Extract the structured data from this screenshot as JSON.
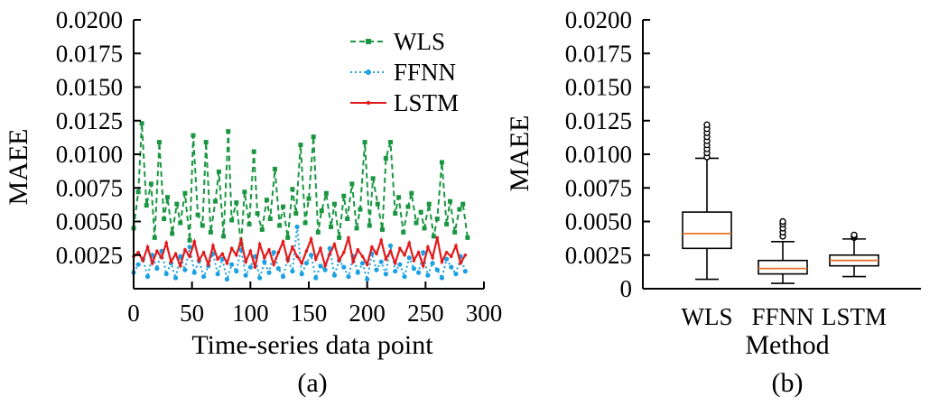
{
  "chart_data": [
    {
      "type": "line",
      "panel_label": "(a)",
      "xlabel": "Time-series data point",
      "ylabel": "MAEE",
      "xlim": [
        0,
        300
      ],
      "ylim": [
        0,
        0.02
      ],
      "x_ticks": [
        0,
        50,
        100,
        150,
        200,
        250,
        300
      ],
      "x_tick_labels": [
        "0",
        "50",
        "100",
        "150",
        "200",
        "250",
        "300"
      ],
      "y_ticks": [
        0.0025,
        0.005,
        0.0075,
        0.01,
        0.0125,
        0.015,
        0.0175,
        0.02
      ],
      "y_tick_labels": [
        "0.0025",
        "0.0050",
        "0.0075",
        "0.0100",
        "0.0125",
        "0.0150",
        "0.0175",
        "0.0200"
      ],
      "grid": false,
      "legend": "top-right",
      "series": [
        {
          "name": "WLS",
          "color": "#1a9641",
          "line_style": "dashed",
          "marker": "square",
          "x": [
            0,
            4,
            7,
            11,
            15,
            18,
            22,
            26,
            29,
            33,
            37,
            40,
            44,
            48,
            51,
            55,
            59,
            62,
            66,
            70,
            73,
            77,
            81,
            84,
            88,
            92,
            95,
            99,
            103,
            106,
            110,
            114,
            117,
            121,
            125,
            128,
            132,
            136,
            139,
            143,
            147,
            150,
            154,
            158,
            161,
            165,
            169,
            172,
            176,
            180,
            183,
            187,
            191,
            194,
            198,
            202,
            205,
            209,
            213,
            216,
            220,
            224,
            227,
            231,
            235,
            238,
            242,
            246,
            249,
            253,
            257,
            260,
            264,
            268,
            271,
            275,
            279,
            282,
            286
          ],
          "y": [
            0.0045,
            0.0072,
            0.0123,
            0.0062,
            0.0078,
            0.0038,
            0.0109,
            0.0052,
            0.0068,
            0.0041,
            0.0063,
            0.0049,
            0.0071,
            0.0036,
            0.0114,
            0.0055,
            0.0047,
            0.0109,
            0.0042,
            0.0065,
            0.0087,
            0.0039,
            0.0117,
            0.0051,
            0.0064,
            0.0033,
            0.0072,
            0.0048,
            0.0102,
            0.0056,
            0.0044,
            0.0066,
            0.0052,
            0.0089,
            0.0047,
            0.0061,
            0.0038,
            0.0074,
            0.0056,
            0.0107,
            0.0049,
            0.0067,
            0.0113,
            0.0042,
            0.0058,
            0.0071,
            0.0046,
            0.0063,
            0.0038,
            0.0069,
            0.0052,
            0.0078,
            0.0045,
            0.0059,
            0.0109,
            0.0047,
            0.0082,
            0.0063,
            0.0044,
            0.0097,
            0.0109,
            0.0056,
            0.0068,
            0.0042,
            0.0061,
            0.0071,
            0.0049,
            0.0057,
            0.0045,
            0.0063,
            0.0039,
            0.0052,
            0.0094,
            0.0048,
            0.0065,
            0.0042,
            0.0059,
            0.0063,
            0.0038
          ]
        },
        {
          "name": "FFNN",
          "color": "#1ba1e2",
          "line_style": "dotted",
          "marker": "circle",
          "x": [
            0,
            4,
            8,
            12,
            16,
            20,
            24,
            28,
            32,
            36,
            40,
            44,
            48,
            52,
            56,
            60,
            64,
            68,
            72,
            76,
            80,
            84,
            88,
            92,
            96,
            100,
            104,
            108,
            112,
            116,
            120,
            124,
            128,
            132,
            136,
            140,
            144,
            148,
            152,
            156,
            160,
            164,
            168,
            172,
            176,
            180,
            184,
            188,
            192,
            196,
            200,
            204,
            208,
            212,
            216,
            220,
            224,
            228,
            232,
            236,
            240,
            244,
            248,
            252,
            256,
            260,
            264,
            268,
            272,
            276,
            280,
            284
          ],
          "y": [
            0.0012,
            0.0018,
            0.0022,
            0.0009,
            0.0025,
            0.0015,
            0.0028,
            0.0011,
            0.0019,
            0.0008,
            0.0024,
            0.0014,
            0.0031,
            0.0012,
            0.0021,
            0.0009,
            0.0017,
            0.0026,
            0.0011,
            0.0022,
            0.0007,
            0.0018,
            0.0013,
            0.0029,
            0.001,
            0.0016,
            0.0024,
            0.0008,
            0.002,
            0.0012,
            0.0027,
            0.0015,
            0.0009,
            0.0022,
            0.0013,
            0.0046,
            0.0011,
            0.0019,
            0.0025,
            0.0008,
            0.0017,
            0.0014,
            0.003,
            0.001,
            0.0021,
            0.0016,
            0.0009,
            0.0024,
            0.0012,
            0.0019,
            0.0007,
            0.0026,
            0.0014,
            0.002,
            0.0011,
            0.0032,
            0.0013,
            0.0018,
            0.0009,
            0.0023,
            0.0015,
            0.0012,
            0.0027,
            0.001,
            0.0019,
            0.0014,
            0.0008,
            0.0022,
            0.0016,
            0.0011,
            0.0024,
            0.0013
          ]
        },
        {
          "name": "LSTM",
          "color": "#e31a1c",
          "line_style": "solid",
          "marker": "point",
          "x": [
            0,
            4,
            8,
            12,
            16,
            20,
            24,
            28,
            32,
            36,
            40,
            44,
            48,
            52,
            56,
            60,
            64,
            68,
            72,
            76,
            80,
            84,
            88,
            92,
            96,
            100,
            104,
            108,
            112,
            116,
            120,
            124,
            128,
            132,
            136,
            140,
            144,
            148,
            152,
            156,
            160,
            164,
            168,
            172,
            176,
            180,
            184,
            188,
            192,
            196,
            200,
            204,
            208,
            212,
            216,
            220,
            224,
            228,
            232,
            236,
            240,
            244,
            248,
            252,
            256,
            260,
            264,
            268,
            272,
            276,
            280,
            284
          ],
          "y": [
            0.0024,
            0.0027,
            0.0021,
            0.0031,
            0.0019,
            0.0028,
            0.0023,
            0.0034,
            0.002,
            0.0026,
            0.0017,
            0.0029,
            0.0024,
            0.0035,
            0.0021,
            0.0027,
            0.0018,
            0.0032,
            0.0022,
            0.0026,
            0.0019,
            0.003,
            0.0025,
            0.0036,
            0.002,
            0.0028,
            0.0016,
            0.0033,
            0.0023,
            0.0029,
            0.0018,
            0.0027,
            0.0035,
            0.0021,
            0.0031,
            0.0024,
            0.0019,
            0.0028,
            0.0037,
            0.0022,
            0.003,
            0.0017,
            0.0026,
            0.0033,
            0.0021,
            0.0027,
            0.0038,
            0.002,
            0.0029,
            0.0024,
            0.0018,
            0.0031,
            0.0026,
            0.0036,
            0.0022,
            0.0028,
            0.0019,
            0.003,
            0.0025,
            0.0034,
            0.0021,
            0.0027,
            0.0017,
            0.0031,
            0.0023,
            0.0038,
            0.002,
            0.0027,
            0.0024,
            0.0032,
            0.0019,
            0.0025
          ]
        }
      ]
    },
    {
      "type": "box",
      "panel_label": "(b)",
      "xlabel": "Method",
      "ylabel": "MAEE",
      "ylim": [
        0,
        0.02
      ],
      "y_ticks": [
        0,
        0.0025,
        0.005,
        0.0075,
        0.01,
        0.0125,
        0.015,
        0.0175,
        0.02
      ],
      "y_tick_labels": [
        "0",
        "0.0025",
        "0.0050",
        "0.0075",
        "0.0100",
        "0.0125",
        "0.0150",
        "0.0175",
        "0.0200"
      ],
      "grid": false,
      "categories": [
        "WLS",
        "FFNN",
        "LSTM"
      ],
      "median_color": "#e8732a",
      "boxes": [
        {
          "whisker_low": 0.0007,
          "q1": 0.003,
          "median": 0.0041,
          "q3": 0.0057,
          "whisker_high": 0.0097,
          "outliers": [
            0.0098,
            0.0101,
            0.0104,
            0.0107,
            0.011,
            0.0113,
            0.0116,
            0.0119,
            0.0122
          ]
        },
        {
          "whisker_low": 0.0004,
          "q1": 0.0011,
          "median": 0.0015,
          "q3": 0.0021,
          "whisker_high": 0.0035,
          "outliers": [
            0.0039,
            0.0042,
            0.0045,
            0.0048,
            0.005
          ]
        },
        {
          "whisker_low": 0.0009,
          "q1": 0.0017,
          "median": 0.0021,
          "q3": 0.0025,
          "whisker_high": 0.0037,
          "outliers": [
            0.0038,
            0.0039,
            0.004
          ]
        }
      ]
    }
  ]
}
